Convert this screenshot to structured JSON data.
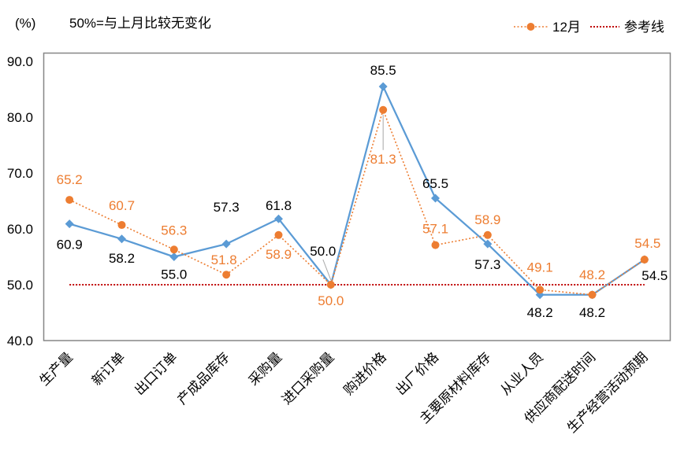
{
  "chart_data": {
    "type": "line",
    "ylabel": "(%)",
    "annotation": "50%=与上月比较无变化",
    "categories": [
      "生产量",
      "新订单",
      "出口订单",
      "产成品库存",
      "采购量",
      "进口采购量",
      "购进价格",
      "出厂价格",
      "主要原材料库存",
      "从业人员",
      "供应商配送时间",
      "生产经营活动预期"
    ],
    "series": [
      {
        "values": [
          60.9,
          58.2,
          55.0,
          57.3,
          61.8,
          50.0,
          85.5,
          65.5,
          57.3,
          48.2,
          48.2,
          54.5
        ],
        "color": "#5B9BD5",
        "label_color": "#000000",
        "marker": "diamond",
        "line_style": "solid"
      },
      {
        "name": "12月",
        "values": [
          65.2,
          60.7,
          56.3,
          51.8,
          58.9,
          50.0,
          81.3,
          57.1,
          58.9,
          49.1,
          48.2,
          54.5
        ],
        "color": "#ED7D31",
        "label_color": "#ED7D31",
        "marker": "circle",
        "line_style": "dotted"
      }
    ],
    "reference_line": {
      "name": "参考线",
      "value": 50.0,
      "color": "#C00000",
      "line_style": "dotted"
    },
    "ylim": [
      40,
      90
    ],
    "yticks": [
      40,
      50,
      60,
      70,
      80,
      90
    ],
    "grid": false,
    "legend_position": "top-right"
  }
}
